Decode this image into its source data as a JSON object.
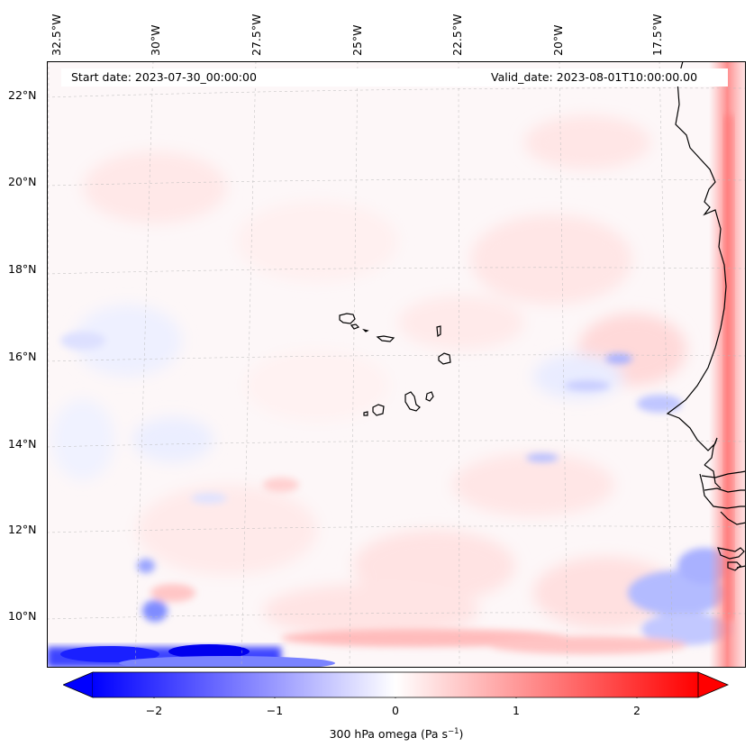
{
  "map": {
    "start_date_label": "Start date: 2023-07-30_00:00:00",
    "valid_date_label": "Valid_date: 2023-08-01T10:00:00.00",
    "lon_ticks": [
      "32.5°W",
      "30°W",
      "27.5°W",
      "25°W",
      "22.5°W",
      "20°W",
      "17.5°W"
    ],
    "lat_ticks": [
      "22°N",
      "20°N",
      "18°N",
      "16°N",
      "14°N",
      "12°N",
      "10°N"
    ],
    "extent": {
      "lon_min": -33.0,
      "lon_max": -15.8,
      "lat_min": 8.9,
      "lat_max": 22.8
    },
    "features": [
      "Cape Verde islands",
      "West African coastline (Senegal, Gambia, Guinea-Bissau)"
    ]
  },
  "colorbar": {
    "label_main": "300 hPa omega (Pa s",
    "label_exp": "−1",
    "label_close": ")",
    "ticks": [
      "−2",
      "−1",
      "0",
      "1",
      "2"
    ],
    "range": [
      -2.6,
      2.6
    ],
    "cmap": "bwr",
    "colors": {
      "low": "#0000ff",
      "mid": "#ffffff",
      "high": "#ff0000"
    }
  }
}
